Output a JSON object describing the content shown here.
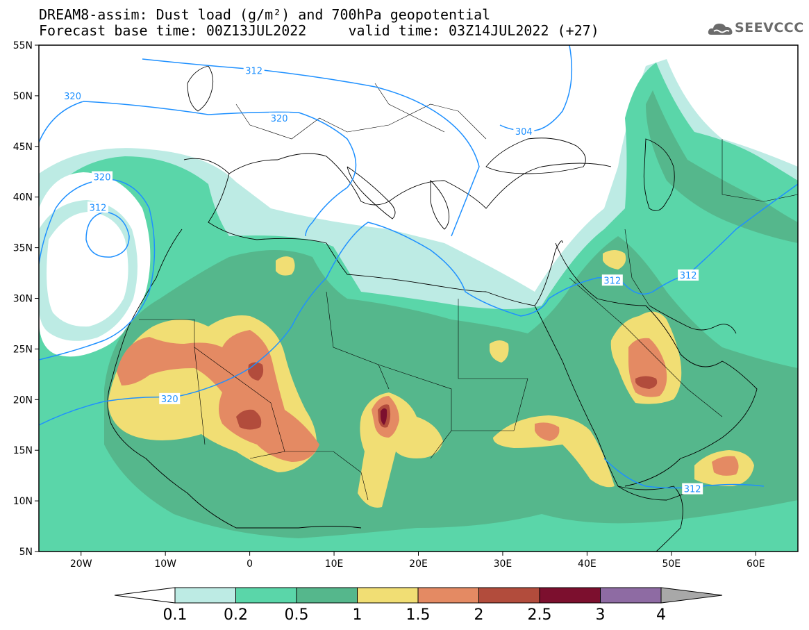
{
  "title": {
    "line1": "DREAM8-assim: Dust load (g/m²) and 700hPa geopotential",
    "line2": "Forecast base time: 00Z13JUL2022     valid time: 03Z14JUL2022 (+27)"
  },
  "logo": {
    "text": "SEEVCCC",
    "icon": "cloud-logo-icon"
  },
  "map": {
    "lon_range": [
      -25,
      65
    ],
    "lat_range": [
      5,
      55
    ],
    "lat_ticks": [
      {
        "value": 55,
        "label": "55N"
      },
      {
        "value": 50,
        "label": "50N"
      },
      {
        "value": 45,
        "label": "45N"
      },
      {
        "value": 40,
        "label": "40N"
      },
      {
        "value": 35,
        "label": "35N"
      },
      {
        "value": 30,
        "label": "30N"
      },
      {
        "value": 25,
        "label": "25N"
      },
      {
        "value": 20,
        "label": "20N"
      },
      {
        "value": 15,
        "label": "15N"
      },
      {
        "value": 10,
        "label": "10N"
      },
      {
        "value": 5,
        "label": "5N"
      }
    ],
    "lon_ticks": [
      {
        "value": -20,
        "label": "20W"
      },
      {
        "value": -10,
        "label": "10W"
      },
      {
        "value": 0,
        "label": "0"
      },
      {
        "value": 10,
        "label": "10E"
      },
      {
        "value": 20,
        "label": "20E"
      },
      {
        "value": 30,
        "label": "30E"
      },
      {
        "value": 40,
        "label": "40E"
      },
      {
        "value": 50,
        "label": "50E"
      },
      {
        "value": 60,
        "label": "60E"
      }
    ],
    "contour_labels": [
      {
        "label": "312",
        "lon": 0.5,
        "lat": 52.5
      },
      {
        "label": "320",
        "lon": -21,
        "lat": 50
      },
      {
        "label": "320",
        "lon": 3.5,
        "lat": 47.8
      },
      {
        "label": "304",
        "lon": 32.5,
        "lat": 46.5
      },
      {
        "label": "320",
        "lon": -17.5,
        "lat": 42
      },
      {
        "label": "312",
        "lon": -18,
        "lat": 39
      },
      {
        "label": "312",
        "lon": 43,
        "lat": 31.8
      },
      {
        "label": "312",
        "lon": 52,
        "lat": 32.3
      },
      {
        "label": "320",
        "lon": -9.5,
        "lat": 20.1
      },
      {
        "label": "312",
        "lon": 52.5,
        "lat": 11.2
      }
    ]
  },
  "colorbar": {
    "colors": [
      "#bdebe4",
      "#5ad6a9",
      "#55b78c",
      "#f1de74",
      "#e48a63",
      "#b24c3c",
      "#7c0f2e",
      "#8e6ba3"
    ],
    "under_color": "#ffffff",
    "over_color": "#a8a8a8",
    "labels": [
      "0.1",
      "0.2",
      "0.5",
      "1",
      "1.5",
      "2",
      "2.5",
      "3",
      "4"
    ]
  }
}
